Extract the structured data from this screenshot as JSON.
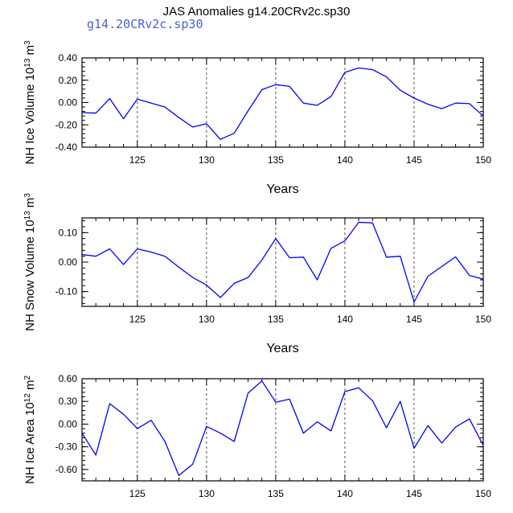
{
  "title": "JAS Anomalies g14.20CRv2c.sp30",
  "subtitle": "g14.20CRv2c.sp30",
  "line_color": "#0000ff",
  "chart_data": [
    {
      "type": "line",
      "xlabel": "Years",
      "ylabel_parts": [
        "NH Ice Volume 10",
        "13",
        " m",
        "3"
      ],
      "xlim": [
        121,
        150
      ],
      "ylim": [
        -0.4,
        0.4
      ],
      "xticks": [
        125,
        130,
        135,
        140,
        145,
        150
      ],
      "yticks": [
        -0.4,
        -0.2,
        0.0,
        0.2,
        0.4
      ],
      "ytick_labels": [
        "-0.40",
        "-0.20",
        "0.00",
        "0.20",
        "0.40"
      ],
      "x": [
        121,
        122,
        123,
        124,
        125,
        126,
        127,
        128,
        129,
        130,
        131,
        132,
        133,
        134,
        135,
        136,
        137,
        138,
        139,
        140,
        141,
        142,
        143,
        144,
        145,
        146,
        147,
        148,
        149,
        150
      ],
      "values": [
        -0.09,
        -0.095,
        0.035,
        -0.145,
        0.03,
        -0.005,
        -0.04,
        -0.135,
        -0.22,
        -0.19,
        -0.33,
        -0.275,
        -0.075,
        0.115,
        0.16,
        0.145,
        -0.005,
        -0.025,
        0.055,
        0.27,
        0.31,
        0.295,
        0.23,
        0.11,
        0.04,
        -0.015,
        -0.055,
        -0.005,
        -0.01,
        -0.12
      ]
    },
    {
      "type": "line",
      "xlabel": "Years",
      "ylabel_parts": [
        "NH Snow Volume 10",
        "13",
        " m",
        "3"
      ],
      "xlim": [
        121,
        150
      ],
      "ylim": [
        -0.15,
        0.15
      ],
      "xticks": [
        125,
        130,
        135,
        140,
        145,
        150
      ],
      "yticks": [
        -0.1,
        0.0,
        0.1
      ],
      "ytick_labels": [
        "-0.10",
        "0.00",
        "0.10"
      ],
      "x": [
        121,
        122,
        123,
        124,
        125,
        126,
        127,
        128,
        129,
        130,
        131,
        132,
        133,
        134,
        135,
        136,
        137,
        138,
        139,
        140,
        141,
        142,
        143,
        144,
        145,
        146,
        147,
        148,
        149,
        150
      ],
      "values": [
        0.026,
        0.02,
        0.045,
        -0.008,
        0.045,
        0.034,
        0.02,
        -0.017,
        -0.052,
        -0.078,
        -0.12,
        -0.072,
        -0.052,
        0.007,
        0.08,
        0.015,
        0.017,
        -0.06,
        0.047,
        0.072,
        0.135,
        0.133,
        0.017,
        0.02,
        -0.135,
        -0.048,
        -0.015,
        0.018,
        -0.045,
        -0.058
      ]
    },
    {
      "type": "line",
      "xlabel": "Years",
      "ylabel_parts": [
        "NH Ice Area 10",
        "12",
        " m",
        "2"
      ],
      "xlim": [
        121,
        150
      ],
      "ylim": [
        -0.75,
        0.6
      ],
      "xticks": [
        125,
        130,
        135,
        140,
        145,
        150
      ],
      "yticks": [
        -0.6,
        -0.3,
        0.0,
        0.3,
        0.6
      ],
      "ytick_labels": [
        "-0.60",
        "-0.30",
        "0.00",
        "0.30",
        "0.60"
      ],
      "x": [
        121,
        122,
        123,
        124,
        125,
        126,
        127,
        128,
        129,
        130,
        131,
        132,
        133,
        134,
        135,
        136,
        137,
        138,
        139,
        140,
        141,
        142,
        143,
        144,
        145,
        146,
        147,
        148,
        149,
        150
      ],
      "values": [
        -0.12,
        -0.41,
        0.27,
        0.13,
        -0.06,
        0.05,
        -0.23,
        -0.68,
        -0.53,
        -0.03,
        -0.12,
        -0.23,
        0.41,
        0.57,
        0.29,
        0.33,
        -0.12,
        0.03,
        -0.09,
        0.43,
        0.48,
        0.31,
        -0.05,
        0.3,
        -0.32,
        -0.02,
        -0.25,
        -0.04,
        0.07,
        -0.28
      ]
    }
  ]
}
